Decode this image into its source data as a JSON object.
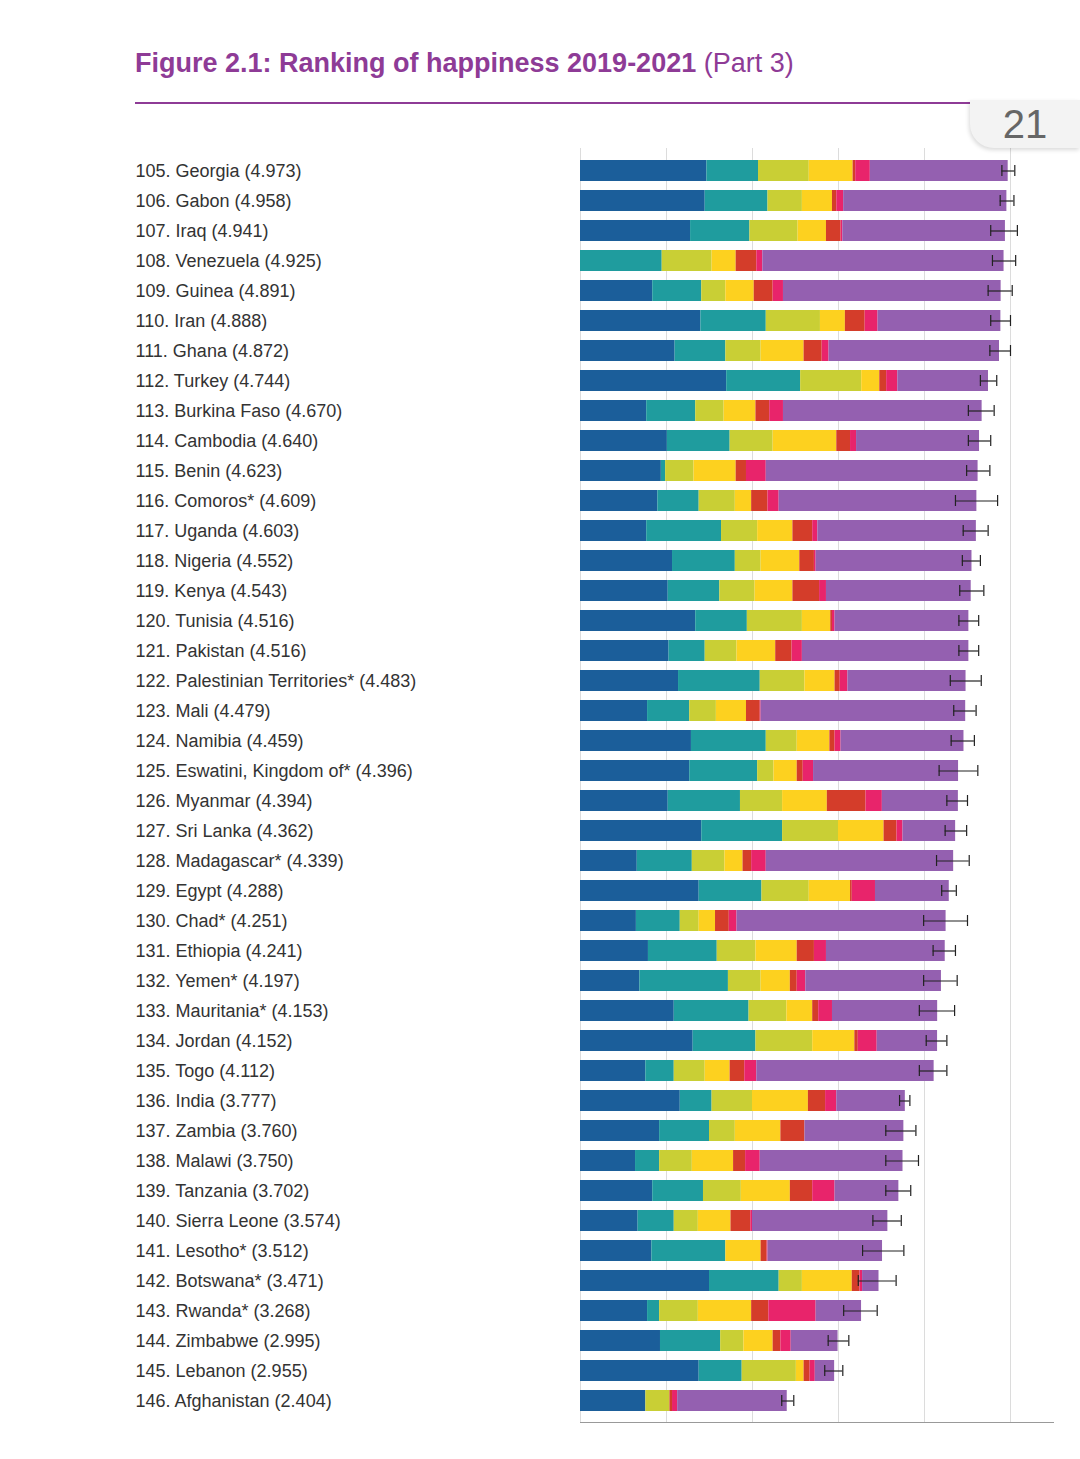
{
  "page_number": "21",
  "chart_data": {
    "type": "bar",
    "title": "Figure 2.1: Ranking of happiness 2019-2021",
    "subtitle": "(Part 3)",
    "orientation": "horizontal",
    "stacked": true,
    "grid": true,
    "tick_labels": "y",
    "xlim": [
      0,
      5.5
    ],
    "xticks": [
      0,
      1,
      2,
      3,
      4,
      5
    ],
    "categories": [
      "105. Georgia (4.973)",
      "106. Gabon (4.958)",
      "107. Iraq (4.941)",
      "108. Venezuela (4.925)",
      "109. Guinea (4.891)",
      "110. Iran (4.888)",
      "111. Ghana (4.872)",
      "112. Turkey (4.744)",
      "113. Burkina Faso (4.670)",
      "114. Cambodia (4.640)",
      "115. Benin (4.623)",
      "116. Comoros* (4.609)",
      "117. Uganda (4.603)",
      "118. Nigeria (4.552)",
      "119. Kenya (4.543)",
      "120. Tunisia (4.516)",
      "121. Pakistan (4.516)",
      "122. Palestinian Territories* (4.483)",
      "123. Mali (4.479)",
      "124. Namibia (4.459)",
      "125. Eswatini, Kingdom of* (4.396)",
      "126. Myanmar (4.394)",
      "127. Sri Lanka (4.362)",
      "128. Madagascar* (4.339)",
      "129. Egypt (4.288)",
      "130. Chad* (4.251)",
      "131. Ethiopia (4.241)",
      "132. Yemen* (4.197)",
      "133. Mauritania* (4.153)",
      "134. Jordan (4.152)",
      "135. Togo (4.112)",
      "136. India (3.777)",
      "137. Zambia (3.760)",
      "138. Malawi (3.750)",
      "139. Tanzania (3.702)",
      "140. Sierra Leone (3.574)",
      "141. Lesotho* (3.512)",
      "142. Botswana* (3.471)",
      "143. Rwanda* (3.268)",
      "144. Zimbabwe (2.995)",
      "145. Lebanon (2.955)",
      "146. Afghanistan (2.404)"
    ],
    "series": [
      {
        "color": "#1b5e9a",
        "values": [
          1.47,
          1.45,
          1.28,
          0,
          0.84,
          1.4,
          1.1,
          1.7,
          0.77,
          1.01,
          0.94,
          0.9,
          0.77,
          1.07,
          1.02,
          1.34,
          1.03,
          1.14,
          0.78,
          1.29,
          1.27,
          1.02,
          1.41,
          0.66,
          1.38,
          0.65,
          0.79,
          0.69,
          1.09,
          1.31,
          0.76,
          1.16,
          0.92,
          0.64,
          0.84,
          0.67,
          0.83,
          1.5,
          0.78,
          0.93,
          1.38,
          0.76
        ]
      },
      {
        "color": "#1f9c9e",
        "values": [
          0.6,
          0.73,
          0.69,
          0.95,
          0.57,
          0.76,
          0.59,
          0.86,
          0.57,
          0.73,
          0.05,
          0.48,
          0.87,
          0.73,
          0.6,
          0.6,
          0.42,
          0.95,
          0.49,
          0.87,
          0.79,
          0.84,
          0.94,
          0.64,
          0.73,
          0.51,
          0.8,
          1.03,
          0.87,
          0.73,
          0.33,
          0.37,
          0.58,
          0.28,
          0.59,
          0.42,
          0.86,
          0.81,
          0.14,
          0.7,
          0.5,
          0
        ]
      },
      {
        "color": "#c9cf35",
        "values": [
          0.59,
          0.4,
          0.56,
          0.58,
          0.28,
          0.63,
          0.41,
          0.71,
          0.33,
          0.5,
          0.33,
          0.42,
          0.42,
          0.3,
          0.41,
          0.64,
          0.37,
          0.52,
          0.31,
          0.36,
          0.19,
          0.49,
          0.65,
          0.38,
          0.55,
          0.22,
          0.45,
          0.38,
          0.44,
          0.66,
          0.36,
          0.47,
          0.3,
          0.38,
          0.44,
          0.28,
          0,
          0.27,
          0.45,
          0.27,
          0.63,
          0.28
        ]
      },
      {
        "color": "#fdd11f",
        "values": [
          0.51,
          0.35,
          0.33,
          0.28,
          0.33,
          0.29,
          0.5,
          0.21,
          0.37,
          0.74,
          0.49,
          0.19,
          0.41,
          0.45,
          0.44,
          0.33,
          0.45,
          0.35,
          0.35,
          0.38,
          0.27,
          0.52,
          0.53,
          0.21,
          0.48,
          0.19,
          0.48,
          0.34,
          0.3,
          0.49,
          0.29,
          0.65,
          0.53,
          0.48,
          0.57,
          0.38,
          0.41,
          0.58,
          0.62,
          0.34,
          0.09,
          0
        ]
      },
      {
        "color": "#d43d2a",
        "values": [
          0.03,
          0.05,
          0.17,
          0.24,
          0.22,
          0.23,
          0.21,
          0.08,
          0.16,
          0.16,
          0.12,
          0.19,
          0.23,
          0.17,
          0.31,
          0.02,
          0.19,
          0.06,
          0.16,
          0.06,
          0.07,
          0.45,
          0.15,
          0.1,
          0.02,
          0.16,
          0.2,
          0.08,
          0.07,
          0.04,
          0.17,
          0.2,
          0.28,
          0.14,
          0.26,
          0.23,
          0.07,
          0.09,
          0.2,
          0.09,
          0.07,
          0.03
        ]
      },
      {
        "color": "#e8246b",
        "values": [
          0.17,
          0.08,
          0.02,
          0.07,
          0.12,
          0.15,
          0.08,
          0.13,
          0.16,
          0.07,
          0.23,
          0.13,
          0.06,
          0.02,
          0.08,
          0.03,
          0.12,
          0.09,
          0.01,
          0.07,
          0.12,
          0.19,
          0.07,
          0.17,
          0.27,
          0.09,
          0.14,
          0.1,
          0.16,
          0.22,
          0.14,
          0.13,
          0,
          0.17,
          0.26,
          0.02,
          0.01,
          0.03,
          0.55,
          0.12,
          0.06,
          0.06
        ]
      },
      {
        "color": "#9460b0",
        "values": [
          1.603,
          1.898,
          1.891,
          2.805,
          2.531,
          1.428,
          1.982,
          1.054,
          2.31,
          1.43,
          2.463,
          2.299,
          1.843,
          1.812,
          1.683,
          1.556,
          1.936,
          1.373,
          2.379,
          1.429,
          1.686,
          0.884,
          0.612,
          2.179,
          0.858,
          2.431,
          1.381,
          1.577,
          1.223,
          0.702,
          2.062,
          0.797,
          1.15,
          1.66,
          0.742,
          1.574,
          1.332,
          0.191,
          0.528,
          0.545,
          0.225,
          1.274
        ]
      }
    ],
    "error_bars": [
      [
        4.9,
        5.05
      ],
      [
        4.88,
        5.04
      ],
      [
        4.77,
        5.08
      ],
      [
        4.79,
        5.06
      ],
      [
        4.74,
        5.02
      ],
      [
        4.77,
        5.0
      ],
      [
        4.76,
        5.0
      ],
      [
        4.65,
        4.84
      ],
      [
        4.51,
        4.81
      ],
      [
        4.51,
        4.77
      ],
      [
        4.49,
        4.76
      ],
      [
        4.36,
        4.85
      ],
      [
        4.45,
        4.74
      ],
      [
        4.44,
        4.65
      ],
      [
        4.41,
        4.69
      ],
      [
        4.4,
        4.63
      ],
      [
        4.4,
        4.63
      ],
      [
        4.3,
        4.66
      ],
      [
        4.34,
        4.6
      ],
      [
        4.31,
        4.58
      ],
      [
        4.17,
        4.62
      ],
      [
        4.26,
        4.5
      ],
      [
        4.24,
        4.49
      ],
      [
        4.14,
        4.52
      ],
      [
        4.2,
        4.37
      ],
      [
        3.99,
        4.5
      ],
      [
        4.1,
        4.36
      ],
      [
        3.99,
        4.38
      ],
      [
        3.94,
        4.35
      ],
      [
        4.02,
        4.26
      ],
      [
        3.94,
        4.26
      ],
      [
        3.71,
        3.83
      ],
      [
        3.55,
        3.9
      ],
      [
        3.55,
        3.93
      ],
      [
        3.55,
        3.84
      ],
      [
        3.4,
        3.73
      ],
      [
        3.28,
        3.76
      ],
      [
        3.23,
        3.67
      ],
      [
        3.06,
        3.45
      ],
      [
        2.88,
        3.12
      ],
      [
        2.84,
        3.05
      ],
      [
        2.34,
        2.48
      ]
    ]
  }
}
